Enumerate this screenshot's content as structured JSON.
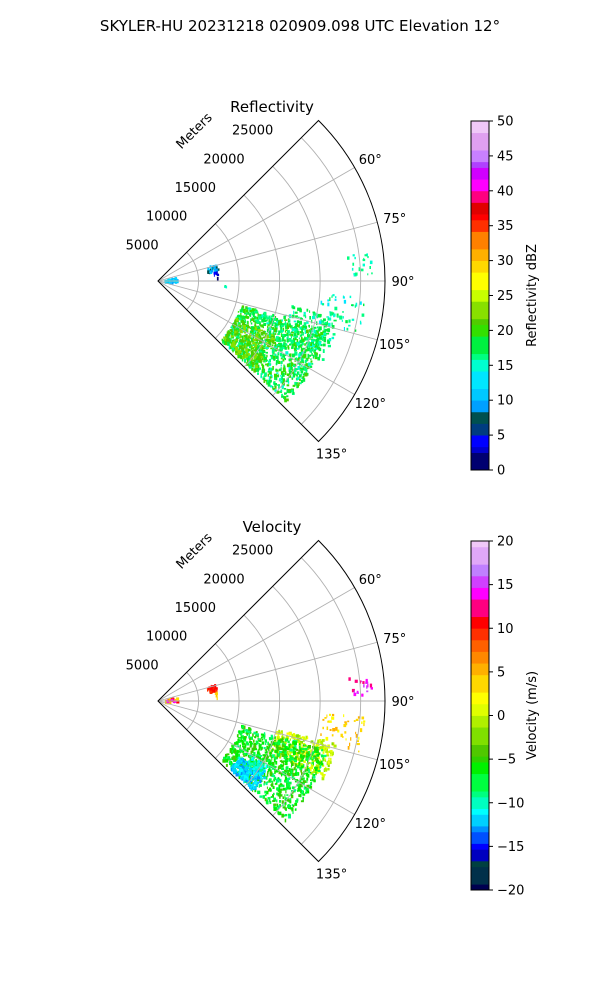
{
  "figure": {
    "suptitle": "SKYLER-HU  20231218  020909.098 UTC Elevation 12°"
  },
  "chart_data": [
    {
      "type": "polar-sector",
      "title": "Reflectivity",
      "radial_axis_label": "Meters",
      "r_ticks": [
        5000,
        10000,
        15000,
        20000,
        25000
      ],
      "r_tick_labels": [
        "5000",
        "10000",
        "15000",
        "20000",
        "25000"
      ],
      "r_max": 28000,
      "theta_range_deg": [
        45,
        135
      ],
      "theta_ticks": [
        60,
        75,
        90,
        105,
        120,
        135
      ],
      "theta_tick_labels": [
        "60°",
        "75°",
        "90°",
        "105°",
        "120°",
        "135°"
      ],
      "grid": true,
      "colorbar": {
        "label": "Reflectivity dBZ",
        "min": 0,
        "max": 50,
        "ticks": [
          0,
          5,
          10,
          15,
          20,
          25,
          30,
          35,
          40,
          45,
          50
        ],
        "tick_labels": [
          "0",
          "5",
          "10",
          "15",
          "20",
          "25",
          "30",
          "35",
          "40",
          "45",
          "50"
        ]
      },
      "echo_regions": [
        {
          "theta_range": [
            76,
            90
          ],
          "r_range": [
            750,
            2300
          ],
          "value_range": [
            9,
            13
          ],
          "count": 35
        },
        {
          "theta_range": [
            73,
            80
          ],
          "r_range": [
            6200,
            7400
          ],
          "value_range": [
            7,
            12
          ],
          "count": 28
        },
        {
          "theta_range": [
            80,
            86
          ],
          "r_range": [
            6900,
            7300
          ],
          "value_range": [
            2,
            5
          ],
          "count": 6
        },
        {
          "theta_range": [
            82,
            88
          ],
          "r_range": [
            23500,
            26500
          ],
          "value_range": [
            14,
            17
          ],
          "count": 20
        },
        {
          "theta_range": [
            94,
            104
          ],
          "r_range": [
            20000,
            25500
          ],
          "value_range": [
            13,
            18
          ],
          "count": 45
        },
        {
          "theta_range": [
            106,
            133
          ],
          "r_range": [
            10500,
            21500
          ],
          "value_range": [
            15,
            21
          ],
          "count": 1100
        },
        {
          "theta_range": [
            115,
            133
          ],
          "r_range": [
            10500,
            16000
          ],
          "value_range": [
            20,
            24
          ],
          "count": 220
        },
        {
          "theta_range": [
            100,
            116
          ],
          "r_range": [
            16000,
            22500
          ],
          "value_range": [
            15,
            19
          ],
          "count": 160
        },
        {
          "theta_range": [
            93,
            97
          ],
          "r_range": [
            7800,
            8600
          ],
          "value_range": [
            14,
            16
          ],
          "count": 3
        }
      ]
    },
    {
      "type": "polar-sector",
      "title": "Velocity",
      "radial_axis_label": "Meters",
      "r_ticks": [
        5000,
        10000,
        15000,
        20000,
        25000
      ],
      "r_tick_labels": [
        "5000",
        "10000",
        "15000",
        "20000",
        "25000"
      ],
      "r_max": 28000,
      "theta_range_deg": [
        45,
        135
      ],
      "theta_ticks": [
        60,
        75,
        90,
        105,
        120,
        135
      ],
      "theta_tick_labels": [
        "60°",
        "75°",
        "90°",
        "105°",
        "120°",
        "135°"
      ],
      "grid": true,
      "colorbar": {
        "label": "Velocity (m/s)",
        "min": -20,
        "max": 20,
        "ticks": [
          -20,
          -15,
          -10,
          -5,
          0,
          5,
          10,
          15,
          20
        ],
        "tick_labels": [
          "−20",
          "−15",
          "−10",
          "−5",
          "0",
          "5",
          "10",
          "15",
          "20"
        ]
      },
      "echo_regions": [
        {
          "theta_range": [
            76,
            90
          ],
          "r_range": [
            750,
            2300
          ],
          "value_range": [
            -3,
            16
          ],
          "count": 40
        },
        {
          "theta_range": [
            73,
            80
          ],
          "r_range": [
            6200,
            7400
          ],
          "value_range": [
            9,
            11
          ],
          "count": 28
        },
        {
          "theta_range": [
            80,
            86
          ],
          "r_range": [
            6900,
            7300
          ],
          "value_range": [
            3,
            5
          ],
          "count": 6
        },
        {
          "theta_range": [
            82,
            88
          ],
          "r_range": [
            23500,
            26500
          ],
          "value_range": [
            12,
            16
          ],
          "count": 20
        },
        {
          "theta_range": [
            94,
            104
          ],
          "r_range": [
            20000,
            25500
          ],
          "value_range": [
            2,
            6
          ],
          "count": 45
        },
        {
          "theta_range": [
            103,
            115
          ],
          "r_range": [
            15000,
            22500
          ],
          "value_range": [
            -2,
            2
          ],
          "count": 300
        },
        {
          "theta_range": [
            106,
            133
          ],
          "r_range": [
            10500,
            21500
          ],
          "value_range": [
            -9,
            -4
          ],
          "count": 900
        },
        {
          "theta_range": [
            124,
            133
          ],
          "r_range": [
            12000,
            16000
          ],
          "value_range": [
            -13,
            -11
          ],
          "count": 200
        },
        {
          "theta_range": [
            120,
            127
          ],
          "r_range": [
            13000,
            15500
          ],
          "value_range": [
            -12,
            -9
          ],
          "count": 60
        }
      ]
    }
  ]
}
